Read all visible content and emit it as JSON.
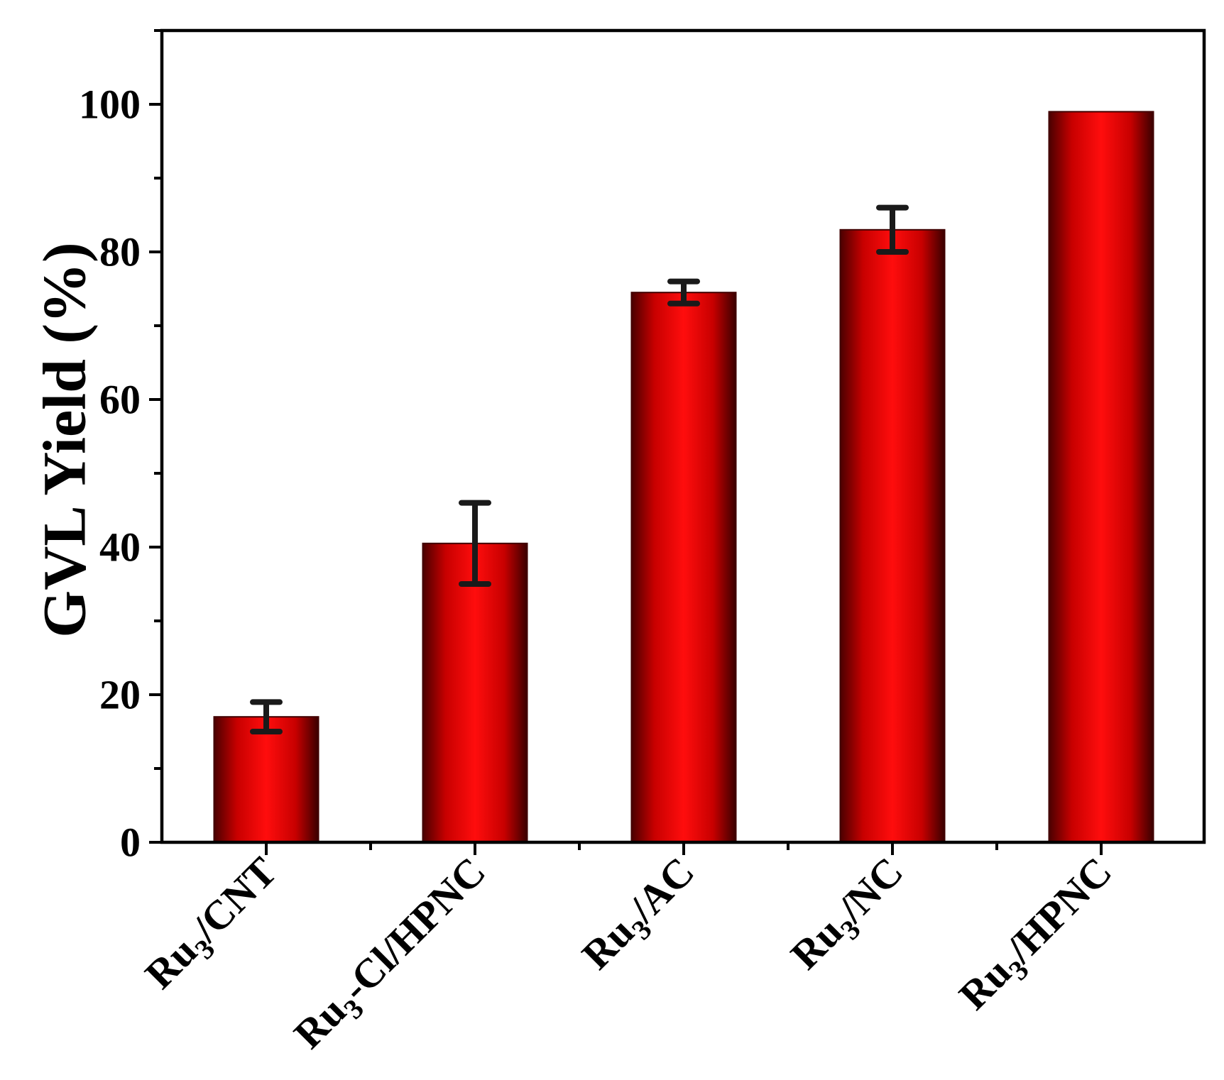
{
  "chart_data": {
    "type": "bar",
    "title": "",
    "ylabel": "GVL Yield (%)",
    "xlabel": "",
    "ylim": [
      0,
      110
    ],
    "y_major_ticks": [
      0,
      20,
      40,
      60,
      80,
      100
    ],
    "y_tick_labels": [
      "0",
      "20",
      "40",
      "60",
      "80",
      "100"
    ],
    "y_minor_step": 10,
    "grid": false,
    "legend": "none",
    "categories": [
      {
        "base": "Ru",
        "sub": "3",
        "rest": "/CNT"
      },
      {
        "base": "Ru",
        "sub": "3",
        "rest": "-Cl/HPNC"
      },
      {
        "base": "Ru",
        "sub": "3",
        "rest": "/AC"
      },
      {
        "base": "Ru",
        "sub": "3",
        "rest": "/NC"
      },
      {
        "base": "Ru",
        "sub": "3",
        "rest": "/HPNC"
      }
    ],
    "values": [
      17,
      40.5,
      74.5,
      83,
      99
    ],
    "error_low": [
      15,
      35,
      73,
      80,
      99
    ],
    "error_high": [
      19,
      46,
      76,
      86,
      99
    ],
    "bar_color": "#ff0000",
    "bar_edge_color": "#400000"
  }
}
